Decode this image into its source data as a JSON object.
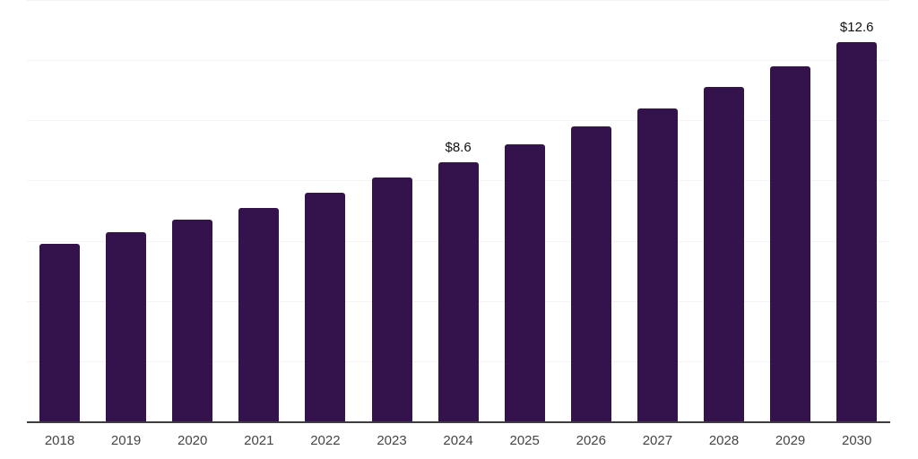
{
  "chart_data": {
    "type": "bar",
    "title": "",
    "xlabel": "",
    "ylabel": "",
    "categories": [
      "2018",
      "2019",
      "2020",
      "2021",
      "2022",
      "2023",
      "2024",
      "2025",
      "2026",
      "2027",
      "2028",
      "2029",
      "2030"
    ],
    "values": [
      5.9,
      6.3,
      6.7,
      7.1,
      7.6,
      8.1,
      8.6,
      9.2,
      9.8,
      10.4,
      11.1,
      11.8,
      12.6
    ],
    "data_labels": [
      null,
      null,
      null,
      null,
      null,
      null,
      "$8.6",
      null,
      null,
      null,
      null,
      null,
      "$12.6"
    ],
    "ylim": [
      0,
      14
    ],
    "gridline_step": 2,
    "grid": true,
    "legend": false,
    "y_axis_labels_visible": false,
    "colors": {
      "bar": "#34124b",
      "axis_line": "#3d3d3d",
      "gridline": "#f3f2f4",
      "tick_label": "#454545",
      "data_label": "#111111",
      "background": "#ffffff"
    }
  }
}
